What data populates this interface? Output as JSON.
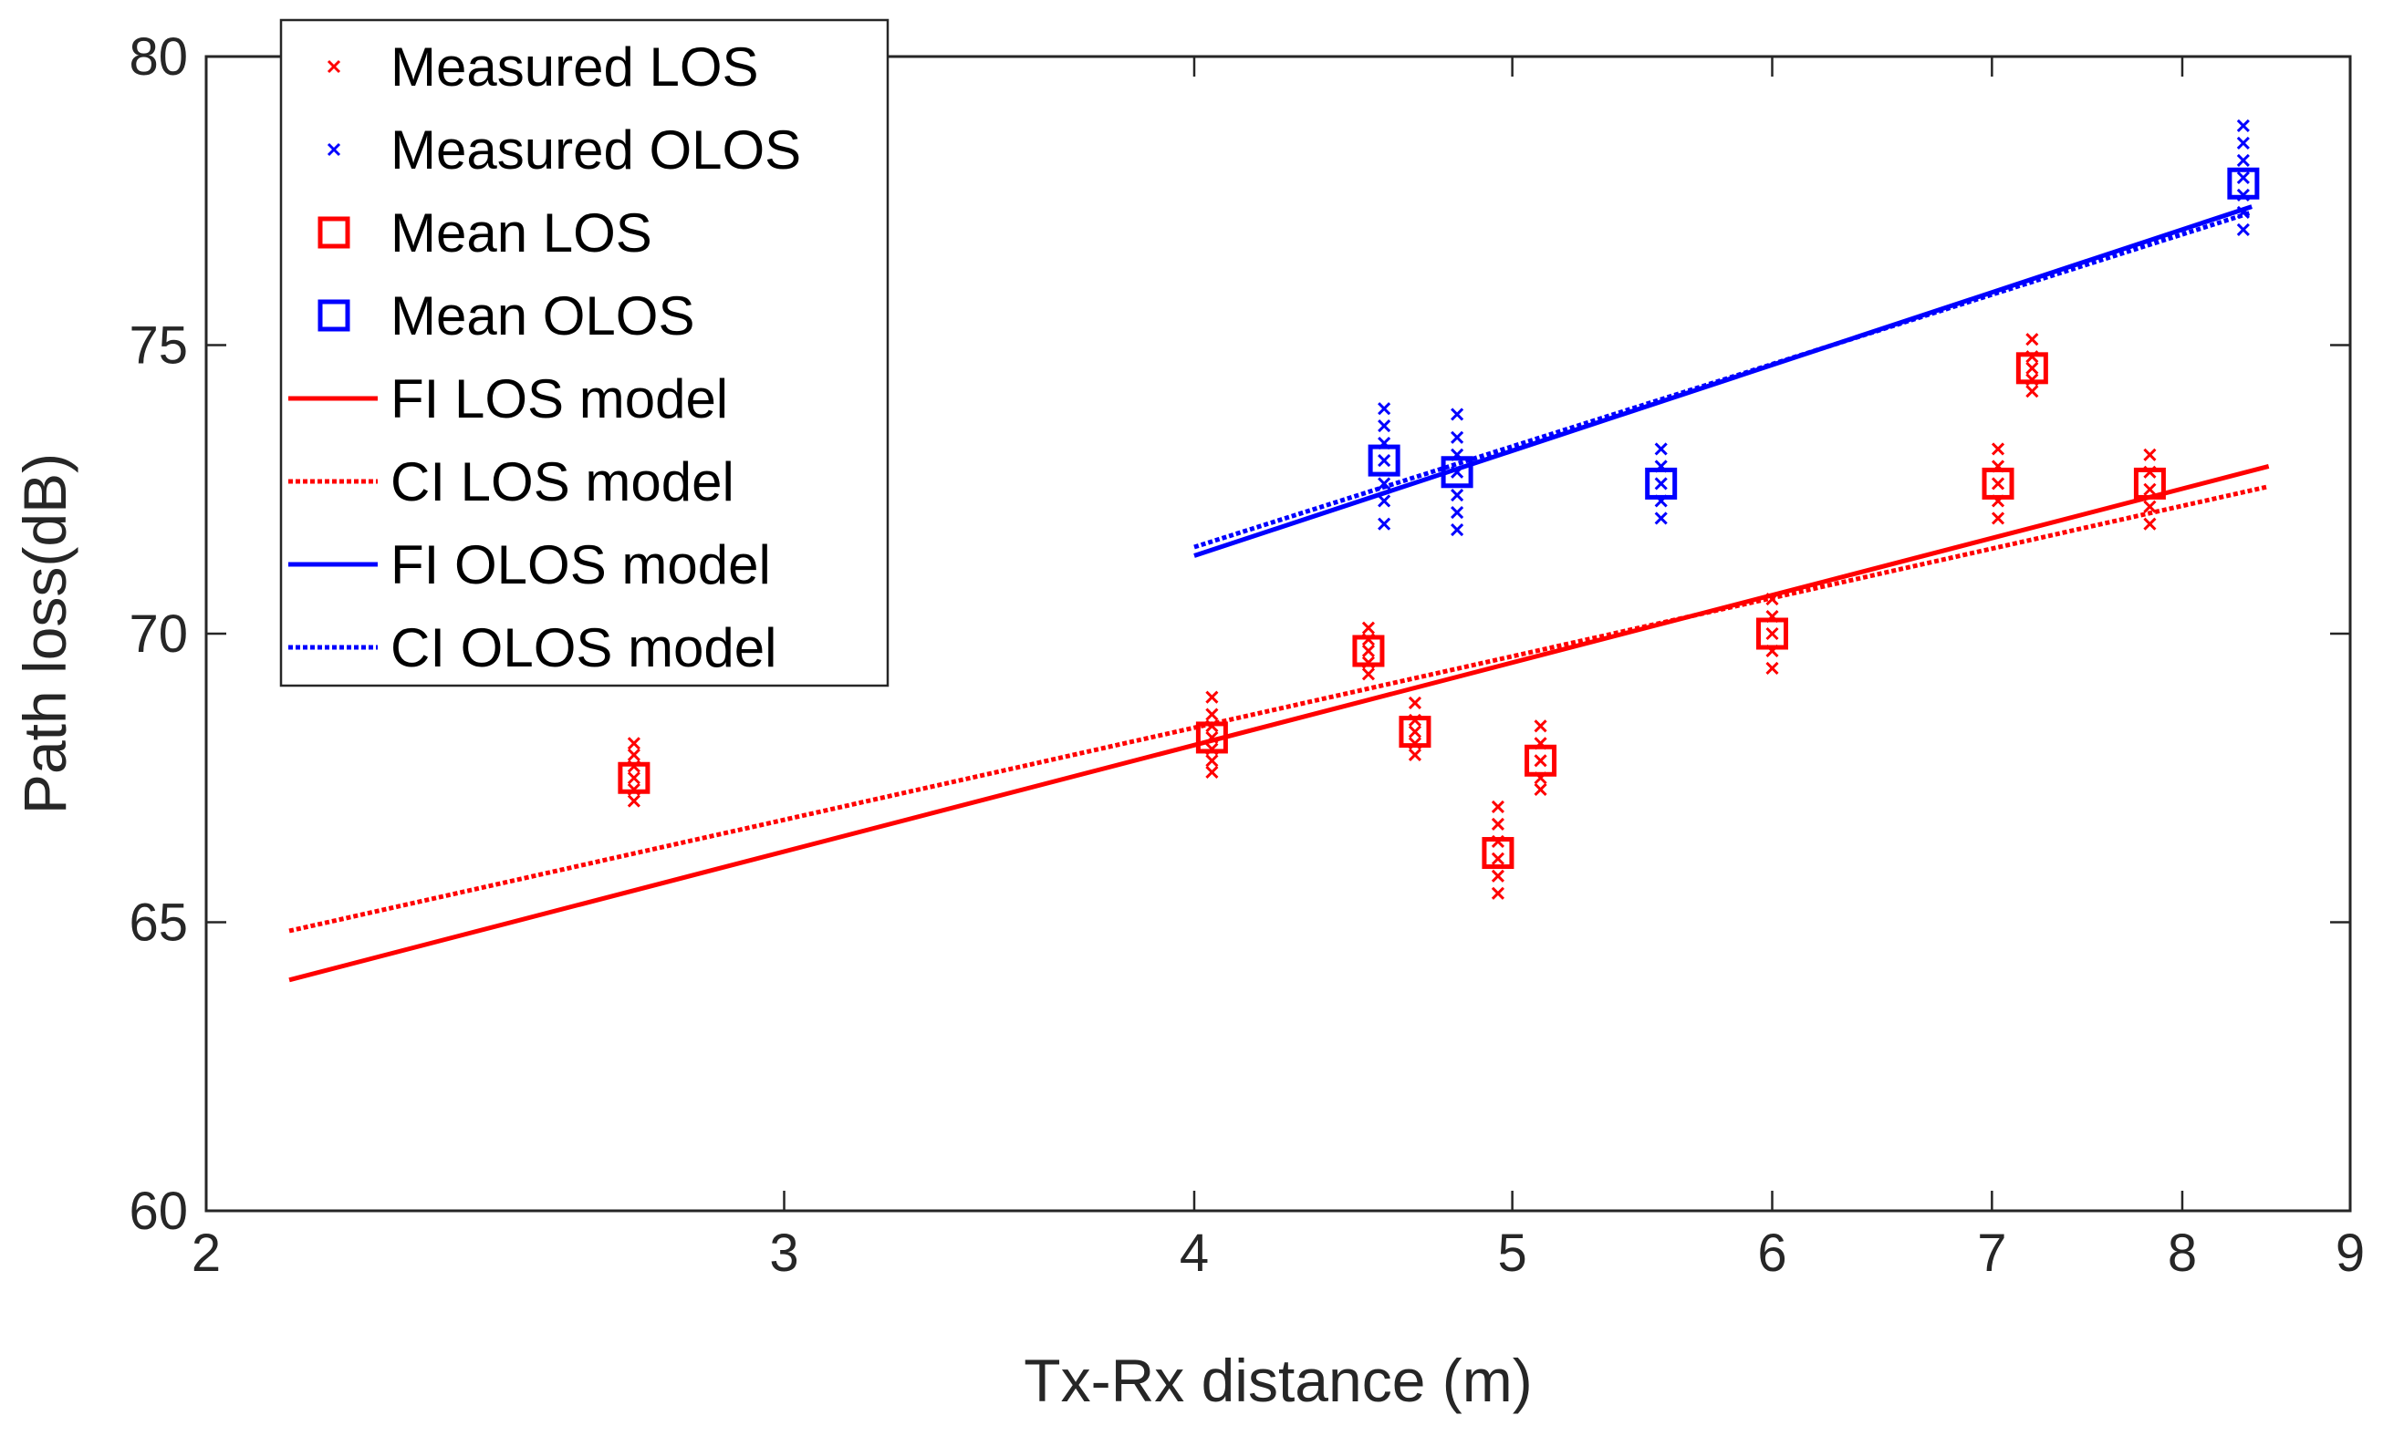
{
  "chart_data": {
    "type": "scatter",
    "title": "",
    "xlabel": "Tx-Rx distance (m)",
    "ylabel": "Path loss(dB)",
    "xscale": "log",
    "xlim": [
      2,
      9
    ],
    "ylim": [
      60,
      80
    ],
    "xticks": [
      2,
      3,
      4,
      5,
      6,
      7,
      8,
      9
    ],
    "yticks": [
      60,
      65,
      70,
      75,
      80
    ],
    "grid": false,
    "legend_position": "top-left",
    "colors": {
      "los": "#ff0000",
      "olos": "#0000ff",
      "axis": "#262626"
    },
    "legend": [
      "Measured LOS",
      "Measured OLOS",
      "Mean LOS",
      "Mean OLOS",
      "FI LOS model",
      "CI LOS model",
      "FI OLOS model",
      "CI OLOS model"
    ],
    "measured_los": [
      {
        "x": 2.7,
        "values": [
          67.1,
          67.3,
          67.5,
          67.7,
          67.9,
          68.1
        ]
      },
      {
        "x": 4.05,
        "values": [
          67.6,
          67.8,
          68.0,
          68.2,
          68.4,
          68.6,
          68.9
        ]
      },
      {
        "x": 4.52,
        "values": [
          69.3,
          69.5,
          69.7,
          69.9,
          70.1
        ]
      },
      {
        "x": 4.67,
        "values": [
          67.9,
          68.1,
          68.3,
          68.5,
          68.8
        ]
      },
      {
        "x": 4.95,
        "values": [
          65.5,
          65.8,
          66.1,
          66.4,
          66.7,
          67.0
        ]
      },
      {
        "x": 5.1,
        "values": [
          67.3,
          67.5,
          67.8,
          68.1,
          68.4
        ]
      },
      {
        "x": 6.0,
        "values": [
          69.4,
          69.7,
          70.0,
          70.3,
          70.6
        ]
      },
      {
        "x": 7.03,
        "values": [
          72.0,
          72.3,
          72.6,
          72.9,
          73.2
        ]
      },
      {
        "x": 7.2,
        "values": [
          74.2,
          74.4,
          74.6,
          74.8,
          75.1
        ]
      },
      {
        "x": 7.82,
        "values": [
          71.9,
          72.2,
          72.5,
          72.8,
          73.1
        ]
      }
    ],
    "measured_olos": [
      {
        "x": 4.57,
        "values": [
          71.9,
          72.3,
          72.6,
          73.0,
          73.3,
          73.6,
          73.9
        ]
      },
      {
        "x": 4.81,
        "values": [
          71.8,
          72.1,
          72.4,
          72.8,
          73.1,
          73.4,
          73.8
        ]
      },
      {
        "x": 5.55,
        "values": [
          72.0,
          72.3,
          72.6,
          72.9,
          73.2
        ]
      },
      {
        "x": 8.35,
        "values": [
          77.0,
          77.3,
          77.6,
          77.9,
          78.2,
          78.5,
          78.8
        ]
      }
    ],
    "mean_los": [
      {
        "x": 2.7,
        "y": 67.5
      },
      {
        "x": 4.05,
        "y": 68.2
      },
      {
        "x": 4.52,
        "y": 69.7
      },
      {
        "x": 4.67,
        "y": 68.3
      },
      {
        "x": 4.95,
        "y": 66.2
      },
      {
        "x": 5.1,
        "y": 67.8
      },
      {
        "x": 6.0,
        "y": 70.0
      },
      {
        "x": 7.03,
        "y": 72.6
      },
      {
        "x": 7.2,
        "y": 74.6
      },
      {
        "x": 7.82,
        "y": 72.6
      }
    ],
    "mean_olos": [
      {
        "x": 4.57,
        "y": 73.0
      },
      {
        "x": 4.81,
        "y": 72.8
      },
      {
        "x": 5.55,
        "y": 72.6
      },
      {
        "x": 8.35,
        "y": 77.8
      }
    ],
    "series": [
      {
        "name": "FI LOS model",
        "style": "solid",
        "color": "#ff0000",
        "x": [
          2.12,
          8.5
        ],
        "y": [
          64.0,
          72.9
        ]
      },
      {
        "name": "CI LOS model",
        "style": "dotted",
        "color": "#ff0000",
        "x": [
          2.12,
          8.5
        ],
        "y": [
          64.85,
          72.55
        ]
      },
      {
        "name": "FI OLOS model",
        "style": "solid",
        "color": "#0000ff",
        "x": [
          4.0,
          8.4
        ],
        "y": [
          71.35,
          77.4
        ]
      },
      {
        "name": "CI OLOS model",
        "style": "dotted",
        "color": "#0000ff",
        "x": [
          4.0,
          8.4
        ],
        "y": [
          71.5,
          77.3
        ]
      }
    ]
  }
}
